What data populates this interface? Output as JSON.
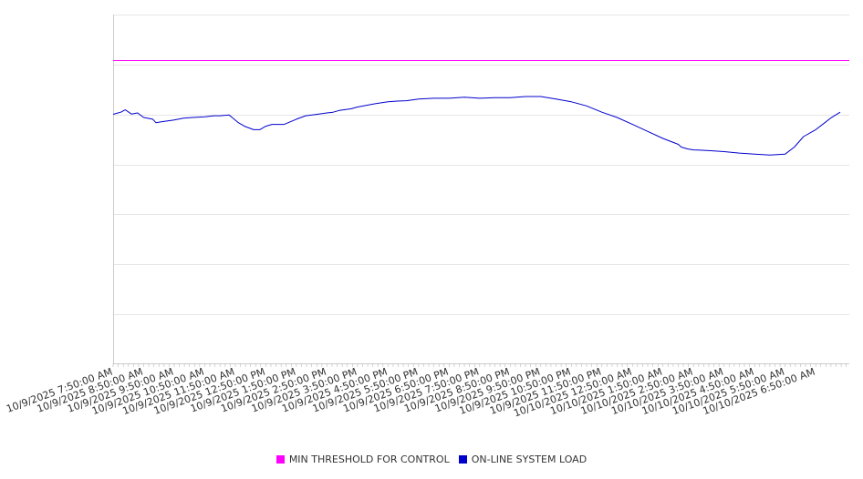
{
  "chart_data": {
    "type": "line",
    "title": "",
    "xlabel": "",
    "ylabel": "",
    "x_tick_labels": [
      "10/9/2025 7:50:00 AM",
      "10/9/2025 8:50:00 AM",
      "10/9/2025 9:50:00 AM",
      "10/9/2025 10:50:00 AM",
      "10/9/2025 11:50:00 AM",
      "10/9/2025 12:50:00 PM",
      "10/9/2025 1:50:00 PM",
      "10/9/2025 2:50:00 PM",
      "10/9/2025 3:50:00 PM",
      "10/9/2025 4:50:00 PM",
      "10/9/2025 5:50:00 PM",
      "10/9/2025 6:50:00 PM",
      "10/9/2025 7:50:00 PM",
      "10/9/2025 8:50:00 PM",
      "10/9/2025 9:50:00 PM",
      "10/9/2025 10:50:00 PM",
      "10/9/2025 11:50:00 PM",
      "10/10/2025 12:50:00 AM",
      "10/10/2025 1:50:00 AM",
      "10/10/2025 2:50:00 AM",
      "10/10/2025 3:50:00 AM",
      "10/10/2025 4:50:00 AM",
      "10/10/2025 5:50:00 AM",
      "10/10/2025 6:50:00 AM"
    ],
    "x_hours": [
      0,
      0.25,
      0.4,
      0.6,
      0.8,
      1,
      1.3,
      1.4,
      1.6,
      2,
      2.3,
      2.6,
      3,
      3.3,
      3.5,
      3.8,
      4.1,
      4.3,
      4.6,
      4.8,
      5,
      5.2,
      5.6,
      6,
      6.3,
      6.6,
      7,
      7.2,
      7.4,
      7.8,
      8,
      8.3,
      8.6,
      9,
      9.3,
      9.6,
      10,
      10.5,
      11,
      11.5,
      12,
      12.5,
      13,
      13.5,
      14,
      14.5,
      15,
      15.5,
      16,
      16.5,
      17,
      17.5,
      18,
      18.5,
      18.6,
      18.8,
      19,
      19.5,
      20,
      20.5,
      21,
      21.5,
      22,
      22.3,
      22.6,
      23,
      23.3,
      23.5,
      23.8
    ],
    "y_fraction": [
      0.714,
      0.72,
      0.727,
      0.715,
      0.718,
      0.705,
      0.7,
      0.69,
      0.693,
      0.698,
      0.703,
      0.705,
      0.707,
      0.71,
      0.71,
      0.712,
      0.69,
      0.68,
      0.67,
      0.67,
      0.68,
      0.685,
      0.685,
      0.7,
      0.71,
      0.713,
      0.718,
      0.72,
      0.725,
      0.73,
      0.735,
      0.74,
      0.745,
      0.75,
      0.752,
      0.753,
      0.758,
      0.76,
      0.76,
      0.763,
      0.76,
      0.762,
      0.762,
      0.765,
      0.765,
      0.758,
      0.75,
      0.738,
      0.72,
      0.705,
      0.685,
      0.665,
      0.645,
      0.628,
      0.62,
      0.615,
      0.612,
      0.61,
      0.607,
      0.603,
      0.6,
      0.597,
      0.6,
      0.62,
      0.65,
      0.67,
      0.69,
      0.704,
      0.72
    ],
    "threshold_fraction": 0.868,
    "grid": true,
    "legend_position": "bottom",
    "series": [
      {
        "name": "MIN THRESHOLD FOR CONTROL",
        "color": "#ff00ff"
      },
      {
        "name": "ON-LINE SYSTEM LOAD",
        "color": "#0000cc"
      }
    ]
  }
}
